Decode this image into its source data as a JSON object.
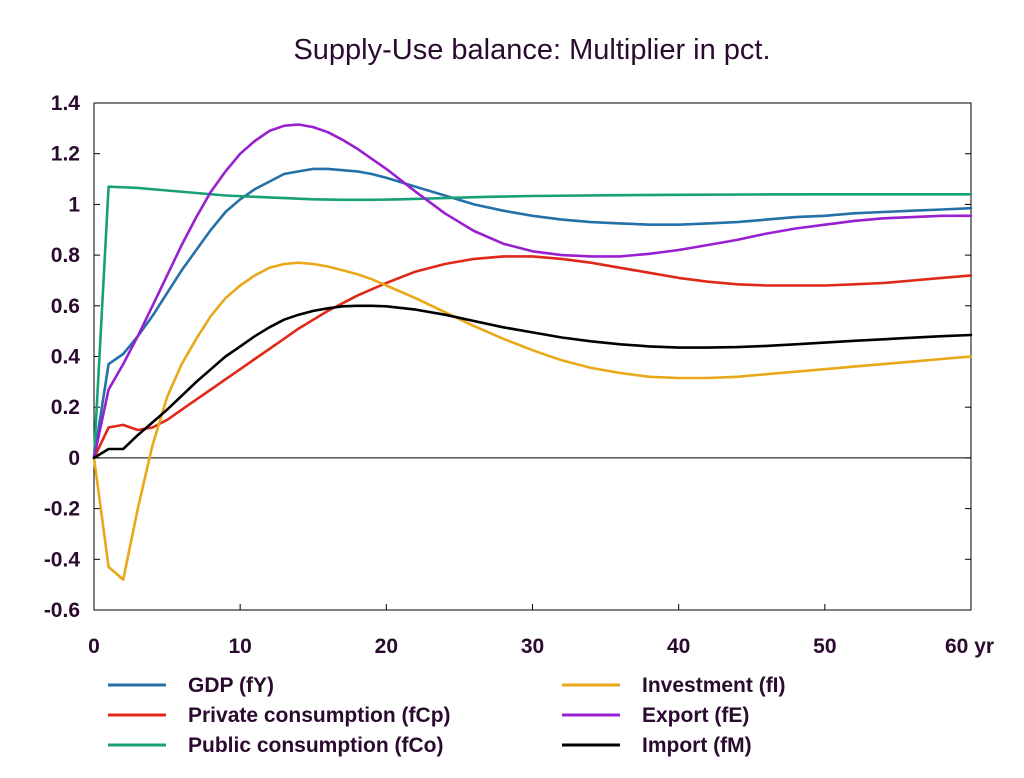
{
  "chart_data": {
    "type": "line",
    "title": "Supply-Use balance: Multiplier in pct.",
    "xlabel": "",
    "ylabel": "",
    "x_unit_label": "yr",
    "xlim": [
      0,
      60
    ],
    "ylim": [
      -0.6,
      1.4
    ],
    "x_ticks": [
      0,
      10,
      20,
      30,
      40,
      50,
      60
    ],
    "y_ticks": [
      -0.6,
      -0.4,
      -0.2,
      0,
      0.2,
      0.4,
      0.6,
      0.8,
      1,
      1.2,
      1.4
    ],
    "y_tick_labels": [
      "-0.6",
      "-0.4",
      "-0.2",
      "0",
      "0.2",
      "0.4",
      "0.6",
      "0.8",
      "1",
      "1.2",
      "1.4"
    ],
    "grid": false,
    "zero_line": true,
    "legend_position": "bottom",
    "series": [
      {
        "name": "GDP (fY)",
        "color": "#2470a8",
        "points": [
          [
            0,
            0
          ],
          [
            1,
            0.37
          ],
          [
            2,
            0.41
          ],
          [
            3,
            0.48
          ],
          [
            4,
            0.56
          ],
          [
            5,
            0.65
          ],
          [
            6,
            0.74
          ],
          [
            7,
            0.82
          ],
          [
            8,
            0.9
          ],
          [
            9,
            0.97
          ],
          [
            10,
            1.02
          ],
          [
            11,
            1.06
          ],
          [
            12,
            1.09
          ],
          [
            13,
            1.12
          ],
          [
            14,
            1.13
          ],
          [
            15,
            1.14
          ],
          [
            16,
            1.14
          ],
          [
            17,
            1.135
          ],
          [
            18,
            1.13
          ],
          [
            19,
            1.12
          ],
          [
            20,
            1.105
          ],
          [
            22,
            1.07
          ],
          [
            24,
            1.035
          ],
          [
            26,
            1.0
          ],
          [
            28,
            0.975
          ],
          [
            30,
            0.955
          ],
          [
            32,
            0.94
          ],
          [
            34,
            0.93
          ],
          [
            36,
            0.925
          ],
          [
            38,
            0.92
          ],
          [
            40,
            0.92
          ],
          [
            42,
            0.925
          ],
          [
            44,
            0.93
          ],
          [
            46,
            0.94
          ],
          [
            48,
            0.95
          ],
          [
            50,
            0.955
          ],
          [
            52,
            0.965
          ],
          [
            54,
            0.97
          ],
          [
            56,
            0.975
          ],
          [
            58,
            0.98
          ],
          [
            60,
            0.985
          ]
        ]
      },
      {
        "name": "Private consumption (fCp)",
        "color": "#e02818",
        "points": [
          [
            0,
            0
          ],
          [
            1,
            0.12
          ],
          [
            2,
            0.13
          ],
          [
            3,
            0.11
          ],
          [
            4,
            0.12
          ],
          [
            5,
            0.15
          ],
          [
            6,
            0.19
          ],
          [
            7,
            0.23
          ],
          [
            8,
            0.27
          ],
          [
            9,
            0.31
          ],
          [
            10,
            0.35
          ],
          [
            11,
            0.39
          ],
          [
            12,
            0.43
          ],
          [
            13,
            0.47
          ],
          [
            14,
            0.51
          ],
          [
            15,
            0.545
          ],
          [
            16,
            0.58
          ],
          [
            17,
            0.61
          ],
          [
            18,
            0.64
          ],
          [
            19,
            0.665
          ],
          [
            20,
            0.69
          ],
          [
            22,
            0.735
          ],
          [
            24,
            0.765
          ],
          [
            26,
            0.785
          ],
          [
            28,
            0.795
          ],
          [
            30,
            0.795
          ],
          [
            32,
            0.785
          ],
          [
            34,
            0.77
          ],
          [
            36,
            0.75
          ],
          [
            38,
            0.73
          ],
          [
            40,
            0.71
          ],
          [
            42,
            0.695
          ],
          [
            44,
            0.685
          ],
          [
            46,
            0.68
          ],
          [
            48,
            0.68
          ],
          [
            50,
            0.68
          ],
          [
            52,
            0.685
          ],
          [
            54,
            0.69
          ],
          [
            56,
            0.7
          ],
          [
            58,
            0.71
          ],
          [
            60,
            0.72
          ]
        ]
      },
      {
        "name": "Public consumption (fCo)",
        "color": "#18a078",
        "points": [
          [
            0,
            0
          ],
          [
            1,
            1.07
          ],
          [
            3,
            1.065
          ],
          [
            5,
            1.055
          ],
          [
            7,
            1.045
          ],
          [
            9,
            1.035
          ],
          [
            11,
            1.03
          ],
          [
            13,
            1.025
          ],
          [
            15,
            1.02
          ],
          [
            17,
            1.018
          ],
          [
            19,
            1.018
          ],
          [
            21,
            1.02
          ],
          [
            24,
            1.025
          ],
          [
            27,
            1.03
          ],
          [
            30,
            1.033
          ],
          [
            35,
            1.036
          ],
          [
            40,
            1.038
          ],
          [
            45,
            1.039
          ],
          [
            50,
            1.04
          ],
          [
            55,
            1.04
          ],
          [
            60,
            1.04
          ]
        ]
      },
      {
        "name": "Investment (fI)",
        "color": "#e8a818",
        "points": [
          [
            0,
            0
          ],
          [
            1,
            -0.43
          ],
          [
            2,
            -0.48
          ],
          [
            3,
            -0.2
          ],
          [
            4,
            0.05
          ],
          [
            5,
            0.24
          ],
          [
            6,
            0.37
          ],
          [
            7,
            0.47
          ],
          [
            8,
            0.56
          ],
          [
            9,
            0.63
          ],
          [
            10,
            0.68
          ],
          [
            11,
            0.72
          ],
          [
            12,
            0.75
          ],
          [
            13,
            0.765
          ],
          [
            14,
            0.77
          ],
          [
            15,
            0.765
          ],
          [
            16,
            0.755
          ],
          [
            17,
            0.74
          ],
          [
            18,
            0.725
          ],
          [
            19,
            0.705
          ],
          [
            20,
            0.68
          ],
          [
            22,
            0.63
          ],
          [
            24,
            0.575
          ],
          [
            26,
            0.52
          ],
          [
            28,
            0.47
          ],
          [
            30,
            0.425
          ],
          [
            32,
            0.385
          ],
          [
            34,
            0.355
          ],
          [
            36,
            0.335
          ],
          [
            38,
            0.32
          ],
          [
            40,
            0.315
          ],
          [
            42,
            0.315
          ],
          [
            44,
            0.32
          ],
          [
            46,
            0.33
          ],
          [
            48,
            0.34
          ],
          [
            50,
            0.35
          ],
          [
            52,
            0.36
          ],
          [
            54,
            0.37
          ],
          [
            56,
            0.38
          ],
          [
            58,
            0.39
          ],
          [
            60,
            0.4
          ]
        ]
      },
      {
        "name": "Export (fE)",
        "color": "#9820d0",
        "points": [
          [
            0,
            0
          ],
          [
            1,
            0.27
          ],
          [
            2,
            0.37
          ],
          [
            3,
            0.48
          ],
          [
            4,
            0.6
          ],
          [
            5,
            0.72
          ],
          [
            6,
            0.84
          ],
          [
            7,
            0.95
          ],
          [
            8,
            1.05
          ],
          [
            9,
            1.13
          ],
          [
            10,
            1.2
          ],
          [
            11,
            1.25
          ],
          [
            12,
            1.29
          ],
          [
            13,
            1.31
          ],
          [
            14,
            1.315
          ],
          [
            15,
            1.305
          ],
          [
            16,
            1.285
          ],
          [
            17,
            1.255
          ],
          [
            18,
            1.22
          ],
          [
            19,
            1.18
          ],
          [
            20,
            1.14
          ],
          [
            22,
            1.05
          ],
          [
            24,
            0.965
          ],
          [
            26,
            0.895
          ],
          [
            28,
            0.845
          ],
          [
            30,
            0.815
          ],
          [
            32,
            0.8
          ],
          [
            34,
            0.795
          ],
          [
            36,
            0.795
          ],
          [
            38,
            0.805
          ],
          [
            40,
            0.82
          ],
          [
            42,
            0.84
          ],
          [
            44,
            0.86
          ],
          [
            46,
            0.885
          ],
          [
            48,
            0.905
          ],
          [
            50,
            0.92
          ],
          [
            52,
            0.935
          ],
          [
            54,
            0.945
          ],
          [
            56,
            0.95
          ],
          [
            58,
            0.955
          ],
          [
            60,
            0.955
          ]
        ]
      },
      {
        "name": "Import (fM)",
        "color": "#000000",
        "points": [
          [
            0,
            0
          ],
          [
            1,
            0.035
          ],
          [
            2,
            0.035
          ],
          [
            3,
            0.09
          ],
          [
            4,
            0.14
          ],
          [
            5,
            0.19
          ],
          [
            6,
            0.245
          ],
          [
            7,
            0.3
          ],
          [
            8,
            0.35
          ],
          [
            9,
            0.4
          ],
          [
            10,
            0.44
          ],
          [
            11,
            0.48
          ],
          [
            12,
            0.515
          ],
          [
            13,
            0.545
          ],
          [
            14,
            0.565
          ],
          [
            15,
            0.58
          ],
          [
            16,
            0.59
          ],
          [
            17,
            0.598
          ],
          [
            18,
            0.6
          ],
          [
            19,
            0.6
          ],
          [
            20,
            0.598
          ],
          [
            22,
            0.585
          ],
          [
            24,
            0.565
          ],
          [
            26,
            0.54
          ],
          [
            28,
            0.515
          ],
          [
            30,
            0.495
          ],
          [
            32,
            0.475
          ],
          [
            34,
            0.46
          ],
          [
            36,
            0.448
          ],
          [
            38,
            0.44
          ],
          [
            40,
            0.435
          ],
          [
            42,
            0.435
          ],
          [
            44,
            0.437
          ],
          [
            46,
            0.442
          ],
          [
            48,
            0.448
          ],
          [
            50,
            0.455
          ],
          [
            52,
            0.462
          ],
          [
            54,
            0.468
          ],
          [
            56,
            0.474
          ],
          [
            58,
            0.48
          ],
          [
            60,
            0.485
          ]
        ]
      }
    ]
  }
}
